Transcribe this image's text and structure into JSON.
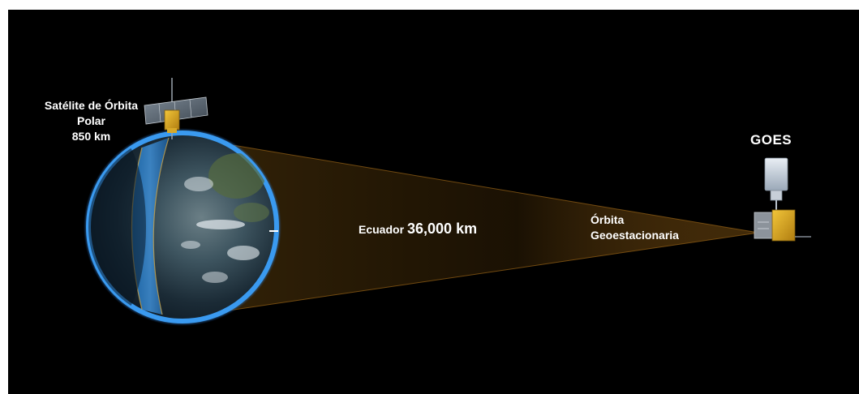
{
  "polar_satellite": {
    "line1": "Satélite de Órbita",
    "line2": "Polar",
    "line3": "850 km"
  },
  "equator": {
    "label": "Ecuador",
    "distance": "36,000 km"
  },
  "geo_orbit": {
    "line1": "Órbita",
    "line2": "Geoestacionaria"
  },
  "goes": {
    "label": "GOES"
  },
  "colors": {
    "background": "#000000",
    "cone": "#c9821c",
    "earth_glow": "#2f8ee8",
    "solar_panel": "#e0b020",
    "text": "#ffffff"
  }
}
